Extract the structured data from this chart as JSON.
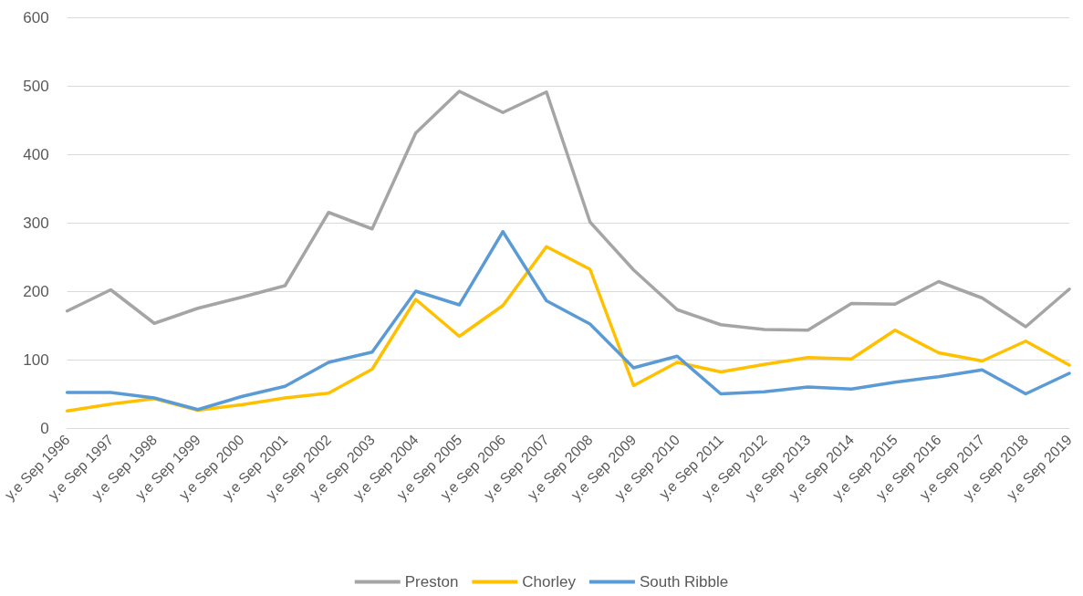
{
  "chart_data": {
    "type": "line",
    "categories": [
      "y.e Sep 1996",
      "y.e Sep 1997",
      "y.e Sep 1998",
      "y.e Sep 1999",
      "y.e Sep 2000",
      "y.e Sep 2001",
      "y.e Sep 2002",
      "y.e Sep 2003",
      "y.e Sep 2004",
      "y.e Sep 2005",
      "y.e Sep 2006",
      "y.e Sep 2007",
      "y.e Sep 2008",
      "y.e Sep 2009",
      "y.e Sep 2010",
      "y.e Sep 2011",
      "y.e Sep 2012",
      "y.e Sep 2013",
      "y.e Sep 2014",
      "y.e Sep 2015",
      "y.e Sep 2016",
      "y.e Sep 2017",
      "y.e Sep 2018",
      "y.e Sep 2019"
    ],
    "series": [
      {
        "name": "Preston",
        "color": "#a5a5a5",
        "values": [
          171,
          202,
          153,
          175,
          191,
          208,
          315,
          291,
          431,
          492,
          461,
          491,
          301,
          231,
          173,
          151,
          144,
          143,
          182,
          181,
          214,
          190,
          148,
          203
        ]
      },
      {
        "name": "Chorley",
        "color": "#ffc000",
        "values": [
          25,
          35,
          43,
          26,
          34,
          44,
          51,
          86,
          188,
          134,
          179,
          265,
          232,
          62,
          96,
          82,
          93,
          103,
          101,
          143,
          110,
          98,
          127,
          92
        ]
      },
      {
        "name": "South Ribble",
        "color": "#5b9bd5",
        "values": [
          52,
          52,
          44,
          27,
          46,
          61,
          96,
          111,
          200,
          180,
          287,
          186,
          152,
          88,
          105,
          50,
          53,
          60,
          57,
          67,
          75,
          85,
          50,
          80
        ]
      }
    ],
    "ylim": [
      0,
      600
    ],
    "yticks": [
      0,
      100,
      200,
      300,
      400,
      500,
      600
    ],
    "grid": "y",
    "legend": "bottom",
    "marker": "none",
    "line_style": "solid"
  }
}
